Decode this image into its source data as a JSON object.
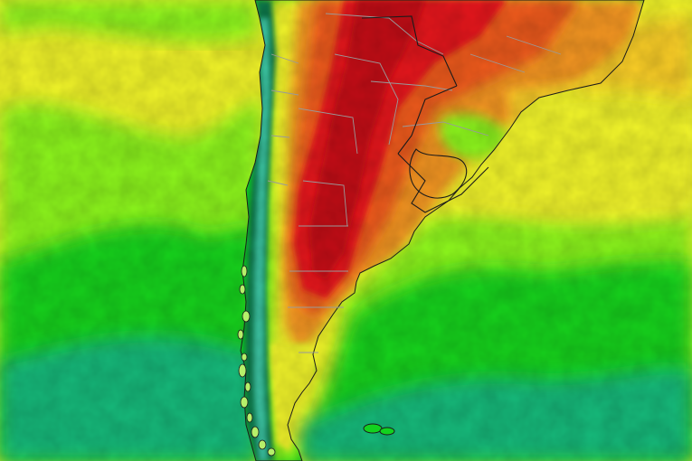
{
  "map": {
    "region": "southern-south-america",
    "field": "temperature-colormap",
    "palette": {
      "deep_ocean": "#0e9f86",
      "cool_ocean": "#17b97a",
      "green": "#12d21f",
      "lime": "#8cf51a",
      "yellow": "#f2f529",
      "yellow_orange": "#f8cc26",
      "orange": "#f49624",
      "red_orange": "#ee5a1f",
      "red": "#e4161b",
      "dark_red": "#c40d12",
      "andes_dark": "#0b7a4b",
      "andes_teal": "#3ec7a6",
      "andes_light": "#b6f06a",
      "border_gray": "#9a9a9a",
      "border_dark": "#1b1b1b"
    },
    "features": {
      "coastline": "coastline",
      "provincial_borders": "provincial-borders",
      "national_borders": "national-borders",
      "falkland_islands": "falkland-islands"
    }
  }
}
